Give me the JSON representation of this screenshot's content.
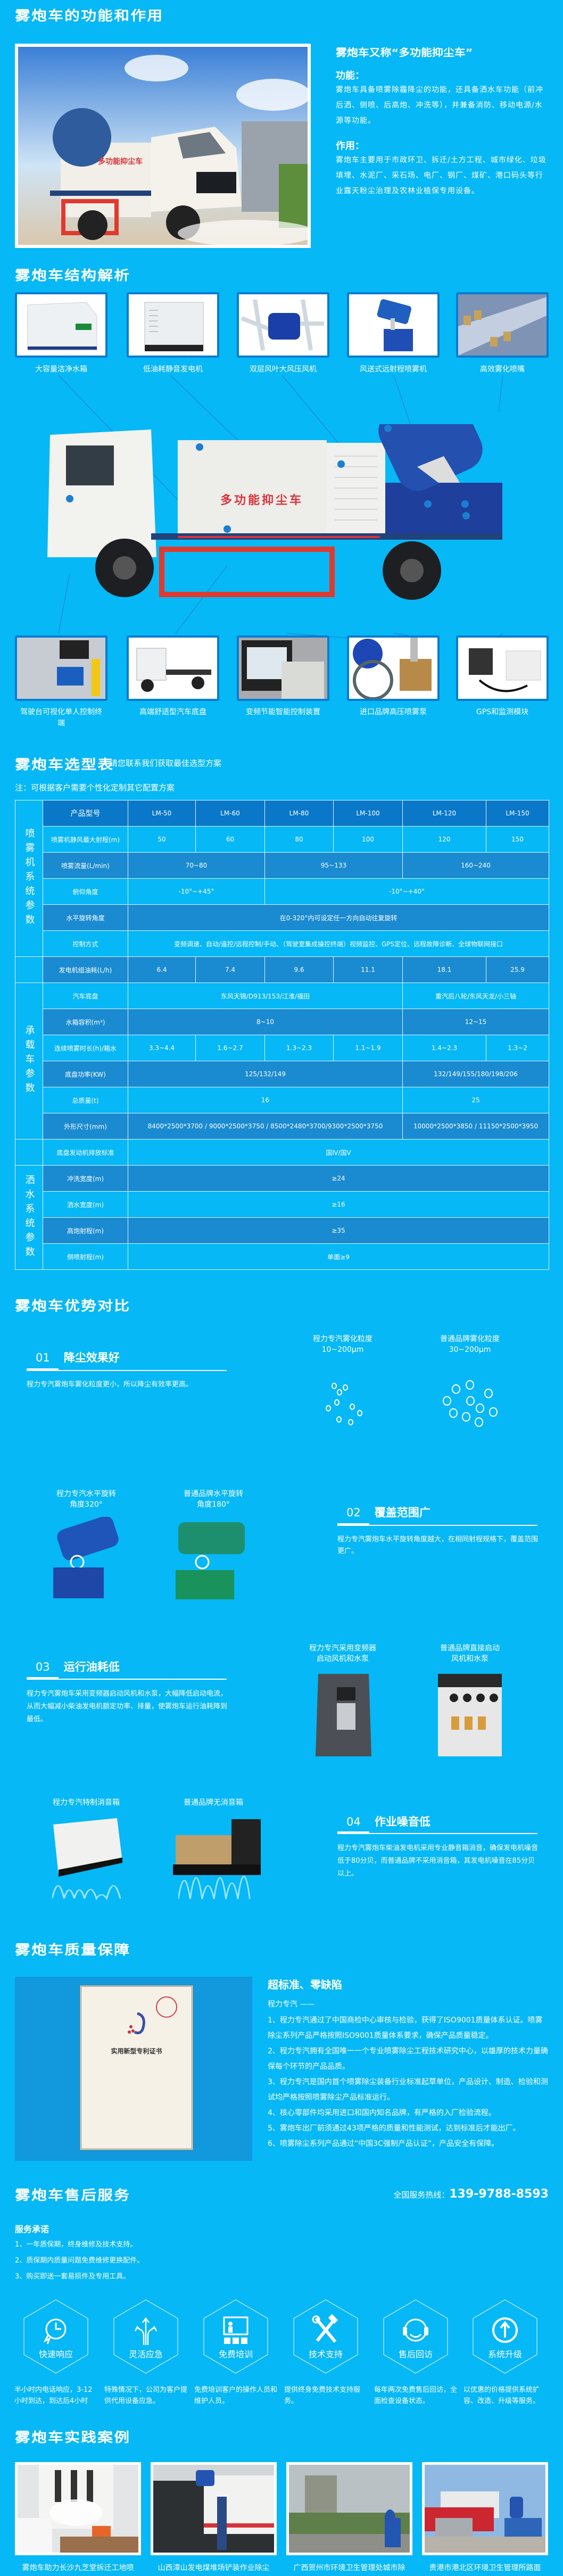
{
  "colors": {
    "background": "#06b8f5",
    "table_header": "#0a78c8",
    "table_mid": "#1a8bd0",
    "thumb_border": "#0a7cd0"
  },
  "intro": {
    "section_title": "雾炮车的功能和作用",
    "alias_title": "雾炮车又称“多功能抑尘车”",
    "function_label": "功能：",
    "function_text": "雾炮车具备喷雾除霾降尘的功能，还具备洒水车功能（前冲后洒、侧喷、后高炮、冲洗等），并兼备消防、移动电源/水源等功能。",
    "use_label": "作用：",
    "use_text": "雾炮车主要用于市政环卫、拆迁/土方工程、城市绿化、垃圾填埋、水泥厂、采石场、电厂、钢厂、煤矿、港口码头等行业露天粉尘治理及农林业植保专用设备。"
  },
  "structure": {
    "section_title": "雾炮车结构解析",
    "truck_body_text": "多功能抑尘车",
    "top_parts": [
      "大容量洁净水箱",
      "低油耗静音发电机",
      "双层风叶大风压风机",
      "风送式远射程喷雾机",
      "高效雾化喷嘴"
    ],
    "bottom_parts": [
      "驾驶台可视化单人控制终端",
      "高端舒适型汽车底盘",
      "变频节能智能控制装置",
      "进口品牌高压喷雾泵",
      "GPS和监测模块"
    ]
  },
  "selection": {
    "section_title": "雾炮车选型表",
    "subtitle": "请您联系我们获取最佳选型方案",
    "note": "注：可根据客户需要个性化定制其它配置方案",
    "groups": [
      {
        "label": "喷雾机系统参数",
        "rows": 6
      },
      {
        "label": "",
        "rows": 1
      },
      {
        "label": "承载车参数",
        "rows": 6
      },
      {
        "label": "",
        "rows": 1
      },
      {
        "label": "洒水系统参数",
        "rows": 4
      }
    ],
    "rows": [
      {
        "label": "产品型号",
        "cells": [
          {
            "t": "LM-50",
            "s": 1
          },
          {
            "t": "LM-60",
            "s": 1
          },
          {
            "t": "LM-80",
            "s": 1
          },
          {
            "t": "LM-100",
            "s": 1
          },
          {
            "t": "LM-120",
            "s": 1
          },
          {
            "t": "LM-150",
            "s": 1
          }
        ]
      },
      {
        "label": "喷雾机静风最大射程(m)",
        "cells": [
          {
            "t": "50",
            "s": 1
          },
          {
            "t": "60",
            "s": 1
          },
          {
            "t": "80",
            "s": 1
          },
          {
            "t": "100",
            "s": 1
          },
          {
            "t": "120",
            "s": 1
          },
          {
            "t": "150",
            "s": 1
          }
        ]
      },
      {
        "label": "喷雾流量(L/min)",
        "cells": [
          {
            "t": "70~80",
            "s": 2
          },
          {
            "t": "95~133",
            "s": 2
          },
          {
            "t": "160~240",
            "s": 2
          }
        ]
      },
      {
        "label": "俯仰角度",
        "cells": [
          {
            "t": "-10°~+45°",
            "s": 2
          },
          {
            "t": "-10°~+40°",
            "s": 4
          }
        ]
      },
      {
        "label": "水平旋转角度",
        "cells": [
          {
            "t": "在0-320°内可设定任一方向自动往复旋转",
            "s": 6
          }
        ]
      },
      {
        "label": "控制方式",
        "cells": [
          {
            "t": "变频调速、自动/遥控/远程控制/手动、（驾驶室集成操控终端）视频监控、GPS定位、远程故障诊断、全球物联网接口",
            "s": 6
          }
        ]
      },
      {
        "label": "发电机组油耗(L/h)",
        "cells": [
          {
            "t": "6.4",
            "s": 1
          },
          {
            "t": "7.4",
            "s": 1
          },
          {
            "t": "9.6",
            "s": 1
          },
          {
            "t": "11.1",
            "s": 1
          },
          {
            "t": "18.1",
            "s": 1
          },
          {
            "t": "25.9",
            "s": 1
          }
        ]
      },
      {
        "label": "汽车底盘",
        "cells": [
          {
            "t": "东风天锦/D913/153/江淮/福田",
            "s": 4
          },
          {
            "t": "重汽后八轮/东风天龙/小三轴",
            "s": 2
          }
        ]
      },
      {
        "label": "水箱容积(m³)",
        "cells": [
          {
            "t": "8~10",
            "s": 4
          },
          {
            "t": "12~15",
            "s": 2
          }
        ]
      },
      {
        "label": "连续喷雾时长(h)/箱水",
        "cells": [
          {
            "t": "3.3~4.4",
            "s": 1
          },
          {
            "t": "1.6~2.7",
            "s": 1
          },
          {
            "t": "1.3~2.3",
            "s": 1
          },
          {
            "t": "1.1~1.9",
            "s": 1
          },
          {
            "t": "1.4~2.3",
            "s": 1
          },
          {
            "t": "1.3~2",
            "s": 1
          }
        ]
      },
      {
        "label": "底盘功率(KW)",
        "cells": [
          {
            "t": "125/132/149",
            "s": 4
          },
          {
            "t": "132/149/155/180/198/206",
            "s": 2
          }
        ]
      },
      {
        "label": "总质量(t)",
        "cells": [
          {
            "t": "16",
            "s": 4
          },
          {
            "t": "25",
            "s": 2
          }
        ]
      },
      {
        "label": "外形尺寸(mm)",
        "cells": [
          {
            "t": "8400*2500*3700 / 9000*2500*3750 / 8500*2480*3700/9300*2500*3750",
            "s": 4
          },
          {
            "t": "10000*2500*3850 / 11150*2500*3950",
            "s": 2
          }
        ]
      },
      {
        "label": "底盘发动机排放标准",
        "cells": [
          {
            "t": "国Ⅳ/国Ⅴ",
            "s": 6
          }
        ]
      },
      {
        "label": "冲洗宽度(m)",
        "cells": [
          {
            "t": "≥24",
            "s": 6
          }
        ]
      },
      {
        "label": "洒水宽度(m)",
        "cells": [
          {
            "t": "≥16",
            "s": 6
          }
        ]
      },
      {
        "label": "高炮射程(m)",
        "cells": [
          {
            "t": "≥35",
            "s": 6
          }
        ]
      },
      {
        "label": "侧喷射程(m)",
        "cells": [
          {
            "t": "单面≥9",
            "s": 6
          }
        ]
      }
    ]
  },
  "advantages": {
    "section_title": "雾炮车优势对比",
    "items": [
      {
        "num": "01",
        "title": "降尘效果好",
        "text": "程力专汽雾炮车雾化粒度更小，所以降尘有效率更高。",
        "ours": "程力专汽雾化粒度",
        "ours_value": "10~200μm",
        "theirs": "普通品牌雾化粒度",
        "theirs_value": "30~200μm"
      },
      {
        "num": "02",
        "title": "覆盖范围广",
        "text": "程力专汽雾炮车水平旋转角度越大，在相同射程规格下，覆盖范围更广。",
        "ours": "程力专汽水平旋转",
        "ours_value": "角度320°",
        "theirs": "普通品牌水平旋转",
        "theirs_value": "角度180°"
      },
      {
        "num": "03",
        "title": "运行油耗低",
        "text": "程力专汽雾炮车采用变频器启动风机和水泵，大幅降低启动电流，从而大幅减小柴油发电机额定功率、排量，使雾炮车运行油耗降到最低。",
        "ours": "程力专汽采用变频器",
        "ours_value": "启动风机和水泵",
        "theirs": "普通品牌直接启动",
        "theirs_value": "风机和水泵"
      },
      {
        "num": "04",
        "title": "作业噪音低",
        "text": "程力专汽雾炮车柴油发电机采用专业静音箱消音，确保发电机噪音低于80分贝，而普通品牌不采用消音箱，其发电机噪音在85分贝以上。",
        "ours": "程力专汽特制消音箱",
        "theirs": "普通品牌无消音箱"
      }
    ]
  },
  "quality": {
    "section_title": "雾炮车质量保障",
    "cert_title": "实用新型专利证书",
    "headline": "超标准、零缺陷",
    "intro": "程力专汽 ——",
    "items": [
      "1、程力专汽通过了中国商检中心审核与检验，获得了ISO9001质量体系认证。喷雾除尘系列产品严格按照ISO9001质量体系要求，确保产品质量稳定。",
      "2、程力专汽拥有全国唯一一个专业喷雾除尘工程技术研究中心，以雄厚的技术力量确保每个环节的产品品质。",
      "3、程力专汽是国内首个喷雾除尘装备行业标准起草单位，产品设计、制造、检验和测试均严格按照喷雾除尘产品标准运行。",
      "4、核心零部件均采用进口和国内知名品牌，有严格的入厂检验流程。",
      "5、雾炮车出厂前须通过43项严格的质量和性能测试，达到标准后才能出厂。",
      "6、喷雾除尘系列产品通过“中国3C强制产品认证”，产品安全有保障。"
    ]
  },
  "service": {
    "section_title": "雾炮车售后服务",
    "hotline_label": "全国服务热线：",
    "hotline": "139-9788-8593",
    "promise_title": "服务承诺",
    "promises": [
      "1、一年质保期，终身维修及技术支持。",
      "2、质保期内质量问题免费维修更换配件。",
      "3、购买即送一套易损件及专用工具。"
    ],
    "items": [
      {
        "icon": "clock-lightning-icon",
        "label": "快速响应",
        "desc": "半小时内电话响应，3-12小时到达，到达后4小时"
      },
      {
        "icon": "split-arrows-icon",
        "label": "灵活应急",
        "desc": "特殊情况下，公司为客户提供代用设备应急。"
      },
      {
        "icon": "training-board-icon",
        "label": "免费培训",
        "desc": "免费培训客户的操作人员和维护人员。"
      },
      {
        "icon": "wrench-hammer-icon",
        "label": "技术支持",
        "desc": "提供终身免费技术支持服务。"
      },
      {
        "icon": "headset-icon",
        "label": "售后回访",
        "desc": "每年两次免费售后回访，全面检查设备状态。"
      },
      {
        "icon": "upgrade-arrow-icon",
        "label": "系统升级",
        "desc": "以优惠的价格提供系统扩容、改造、升级等服务。"
      }
    ]
  },
  "cases": {
    "section_title": "雾炮车实践案例",
    "items": [
      "雾炮车助力长沙九芝堂拆迁工地喷",
      "山西漳山发电煤堆场铲装作业除尘",
      "广西贺州市环境卫生管理处城市除",
      "贵港市港北区环境卫生管理所路面"
    ]
  }
}
